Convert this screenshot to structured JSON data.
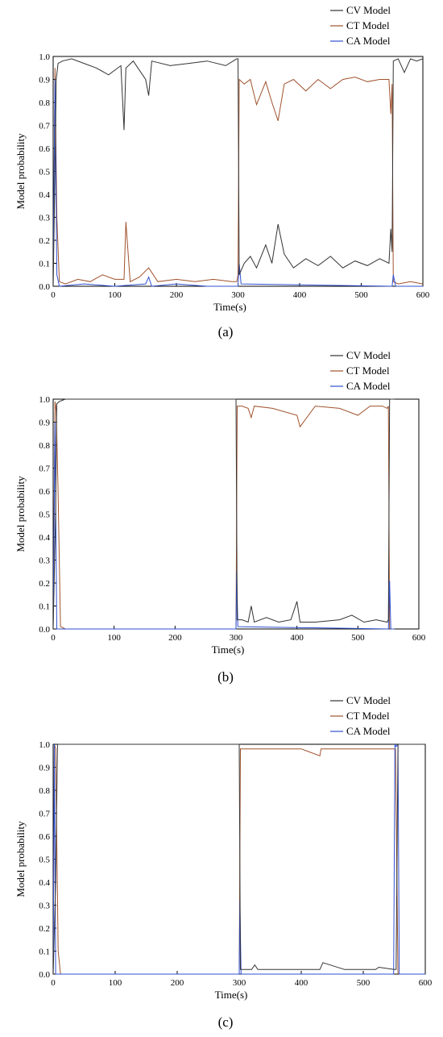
{
  "series_colors": {
    "cv": "#333333",
    "ct": "#a0522d",
    "ca": "#3050d0"
  },
  "panels": [
    {
      "label": "(a)",
      "chart_data": {
        "type": "line",
        "xlabel": "Time(s)",
        "ylabel": "Model probability",
        "xlim": [
          0,
          600
        ],
        "ylim": [
          0,
          1.0
        ],
        "xticks": [
          0,
          100,
          200,
          300,
          400,
          500,
          600
        ],
        "yticks": [
          0.0,
          0.1,
          0.2,
          0.3,
          0.4,
          0.5,
          0.6,
          0.7,
          0.8,
          0.9,
          1.0
        ],
        "legend_position": "top-right",
        "series": [
          {
            "name": "CV Model",
            "key": "cv",
            "x": [
              0,
              3,
              5,
              8,
              15,
              30,
              50,
              70,
              90,
              110,
              115,
              118,
              130,
              150,
              155,
              160,
              190,
              220,
              250,
              280,
              298,
              300,
              302,
              310,
              320,
              330,
              345,
              355,
              365,
              375,
              390,
              410,
              430,
              450,
              470,
              490,
              510,
              530,
              545,
              548,
              550,
              552,
              560,
              570,
              580,
              590,
              600
            ],
            "y": [
              0.0,
              0.5,
              0.9,
              0.97,
              0.98,
              0.99,
              0.97,
              0.95,
              0.92,
              0.96,
              0.68,
              0.95,
              0.98,
              0.9,
              0.83,
              0.98,
              0.96,
              0.97,
              0.98,
              0.96,
              0.99,
              0.99,
              0.05,
              0.1,
              0.13,
              0.08,
              0.18,
              0.1,
              0.27,
              0.14,
              0.08,
              0.12,
              0.09,
              0.13,
              0.08,
              0.11,
              0.09,
              0.12,
              0.1,
              0.25,
              0.15,
              0.98,
              0.99,
              0.93,
              0.99,
              0.98,
              0.99
            ]
          },
          {
            "name": "CT Model",
            "key": "ct",
            "x": [
              0,
              3,
              6,
              10,
              20,
              40,
              60,
              80,
              100,
              115,
              118,
              125,
              140,
              155,
              170,
              200,
              230,
              260,
              290,
              298,
              300,
              302,
              310,
              320,
              330,
              345,
              355,
              365,
              375,
              390,
              410,
              430,
              450,
              470,
              490,
              510,
              530,
              545,
              548,
              550,
              552,
              560,
              580,
              600
            ],
            "y": [
              0.0,
              0.95,
              0.3,
              0.02,
              0.01,
              0.03,
              0.02,
              0.05,
              0.03,
              0.03,
              0.28,
              0.02,
              0.04,
              0.08,
              0.02,
              0.03,
              0.02,
              0.03,
              0.02,
              0.02,
              0.05,
              0.9,
              0.88,
              0.9,
              0.79,
              0.89,
              0.8,
              0.72,
              0.88,
              0.9,
              0.85,
              0.9,
              0.86,
              0.9,
              0.91,
              0.89,
              0.9,
              0.9,
              0.75,
              0.88,
              0.02,
              0.01,
              0.02,
              0.01
            ]
          },
          {
            "name": "CA Model",
            "key": "ca",
            "x": [
              0,
              3,
              6,
              10,
              50,
              100,
              150,
              155,
              160,
              200,
              250,
              300,
              302,
              305,
              550,
              552,
              556,
              600
            ],
            "y": [
              0.05,
              0.9,
              0.05,
              0.0,
              0.01,
              0.0,
              0.01,
              0.04,
              0.0,
              0.01,
              0.0,
              0.0,
              0.1,
              0.01,
              0.0,
              0.05,
              0.0,
              0.0
            ]
          }
        ]
      }
    },
    {
      "label": "(b)",
      "chart_data": {
        "type": "line",
        "xlabel": "Time(s)",
        "ylabel": "Model probability",
        "xlim": [
          0,
          600
        ],
        "ylim": [
          0,
          1.0
        ],
        "xticks": [
          0,
          100,
          200,
          300,
          400,
          500,
          600
        ],
        "yticks": [
          0.0,
          0.1,
          0.2,
          0.3,
          0.4,
          0.5,
          0.6,
          0.7,
          0.8,
          0.9,
          1.0
        ],
        "legend_position": "top-right",
        "series": [
          {
            "name": "CV Model",
            "key": "cv",
            "x": [
              0,
              4,
              6,
              10,
              20,
              300,
              302,
              310,
              320,
              325,
              330,
              350,
              370,
              390,
              400,
              405,
              430,
              470,
              490,
              510,
              530,
              548,
              550,
              552,
              560
            ],
            "y": [
              0.0,
              0.5,
              0.98,
              0.99,
              1.0,
              1.0,
              0.04,
              0.04,
              0.03,
              0.1,
              0.03,
              0.05,
              0.03,
              0.04,
              0.12,
              0.03,
              0.03,
              0.04,
              0.06,
              0.03,
              0.04,
              0.03,
              0.04,
              1.0,
              1.0
            ]
          },
          {
            "name": "CT Model",
            "key": "ct",
            "x": [
              0,
              3,
              5,
              8,
              12,
              20,
              300,
              302,
              310,
              320,
              325,
              330,
              360,
              400,
              405,
              430,
              470,
              500,
              520,
              540,
              548,
              550,
              552
            ],
            "y": [
              0.0,
              0.99,
              0.95,
              0.6,
              0.01,
              0.0,
              0.0,
              0.97,
              0.97,
              0.96,
              0.92,
              0.97,
              0.96,
              0.93,
              0.88,
              0.97,
              0.96,
              0.93,
              0.97,
              0.97,
              0.96,
              0.97,
              0.0
            ]
          },
          {
            "name": "CA Model",
            "key": "ca",
            "x": [
              0,
              3,
              6,
              12,
              300,
              301,
              303,
              550,
              552,
              554,
              560
            ],
            "y": [
              0.01,
              0.9,
              0.0,
              0.0,
              0.0,
              0.25,
              0.01,
              0.0,
              0.21,
              0.0,
              0.0
            ]
          }
        ]
      }
    },
    {
      "label": "(c)",
      "chart_data": {
        "type": "line",
        "xlabel": "Time(s)",
        "ylabel": "Model probability",
        "xlim": [
          0,
          600
        ],
        "ylim": [
          0,
          1.0
        ],
        "xticks": [
          0,
          100,
          200,
          300,
          400,
          500,
          600
        ],
        "yticks": [
          0.0,
          0.1,
          0.2,
          0.3,
          0.4,
          0.5,
          0.6,
          0.7,
          0.8,
          0.9,
          1.0
        ],
        "legend_position": "top-right",
        "series": [
          {
            "name": "CV Model",
            "key": "cv",
            "x": [
              0,
              4,
              7,
              10,
              300,
              302,
              310,
              320,
              325,
              330,
              400,
              430,
              435,
              470,
              520,
              525,
              550,
              553,
              556,
              560,
              600
            ],
            "y": [
              0.0,
              0.4,
              1.0,
              1.0,
              1.0,
              0.02,
              0.02,
              0.02,
              0.04,
              0.02,
              0.02,
              0.02,
              0.05,
              0.02,
              0.02,
              0.03,
              0.02,
              0.02,
              1.0,
              1.0,
              1.0
            ]
          },
          {
            "name": "CT Model",
            "key": "ct",
            "x": [
              0,
              2,
              4,
              8,
              12,
              300,
              302,
              310,
              350,
              400,
              430,
              432,
              470,
              520,
              550,
              552,
              556
            ],
            "y": [
              0.0,
              1.0,
              0.98,
              0.1,
              0.0,
              0.0,
              0.98,
              0.98,
              0.98,
              0.98,
              0.95,
              0.98,
              0.98,
              0.98,
              0.98,
              0.98,
              0.0
            ]
          },
          {
            "name": "CA Model",
            "key": "ca",
            "x": [
              0,
              2,
              4,
              8,
              300,
              301,
              303,
              549,
              551,
              553,
              556,
              558,
              600
            ],
            "y": [
              0.0,
              1.0,
              0.0,
              0.0,
              0.0,
              0.32,
              0.0,
              0.0,
              1.0,
              0.99,
              1.0,
              0.0,
              0.0
            ]
          }
        ]
      }
    }
  ]
}
